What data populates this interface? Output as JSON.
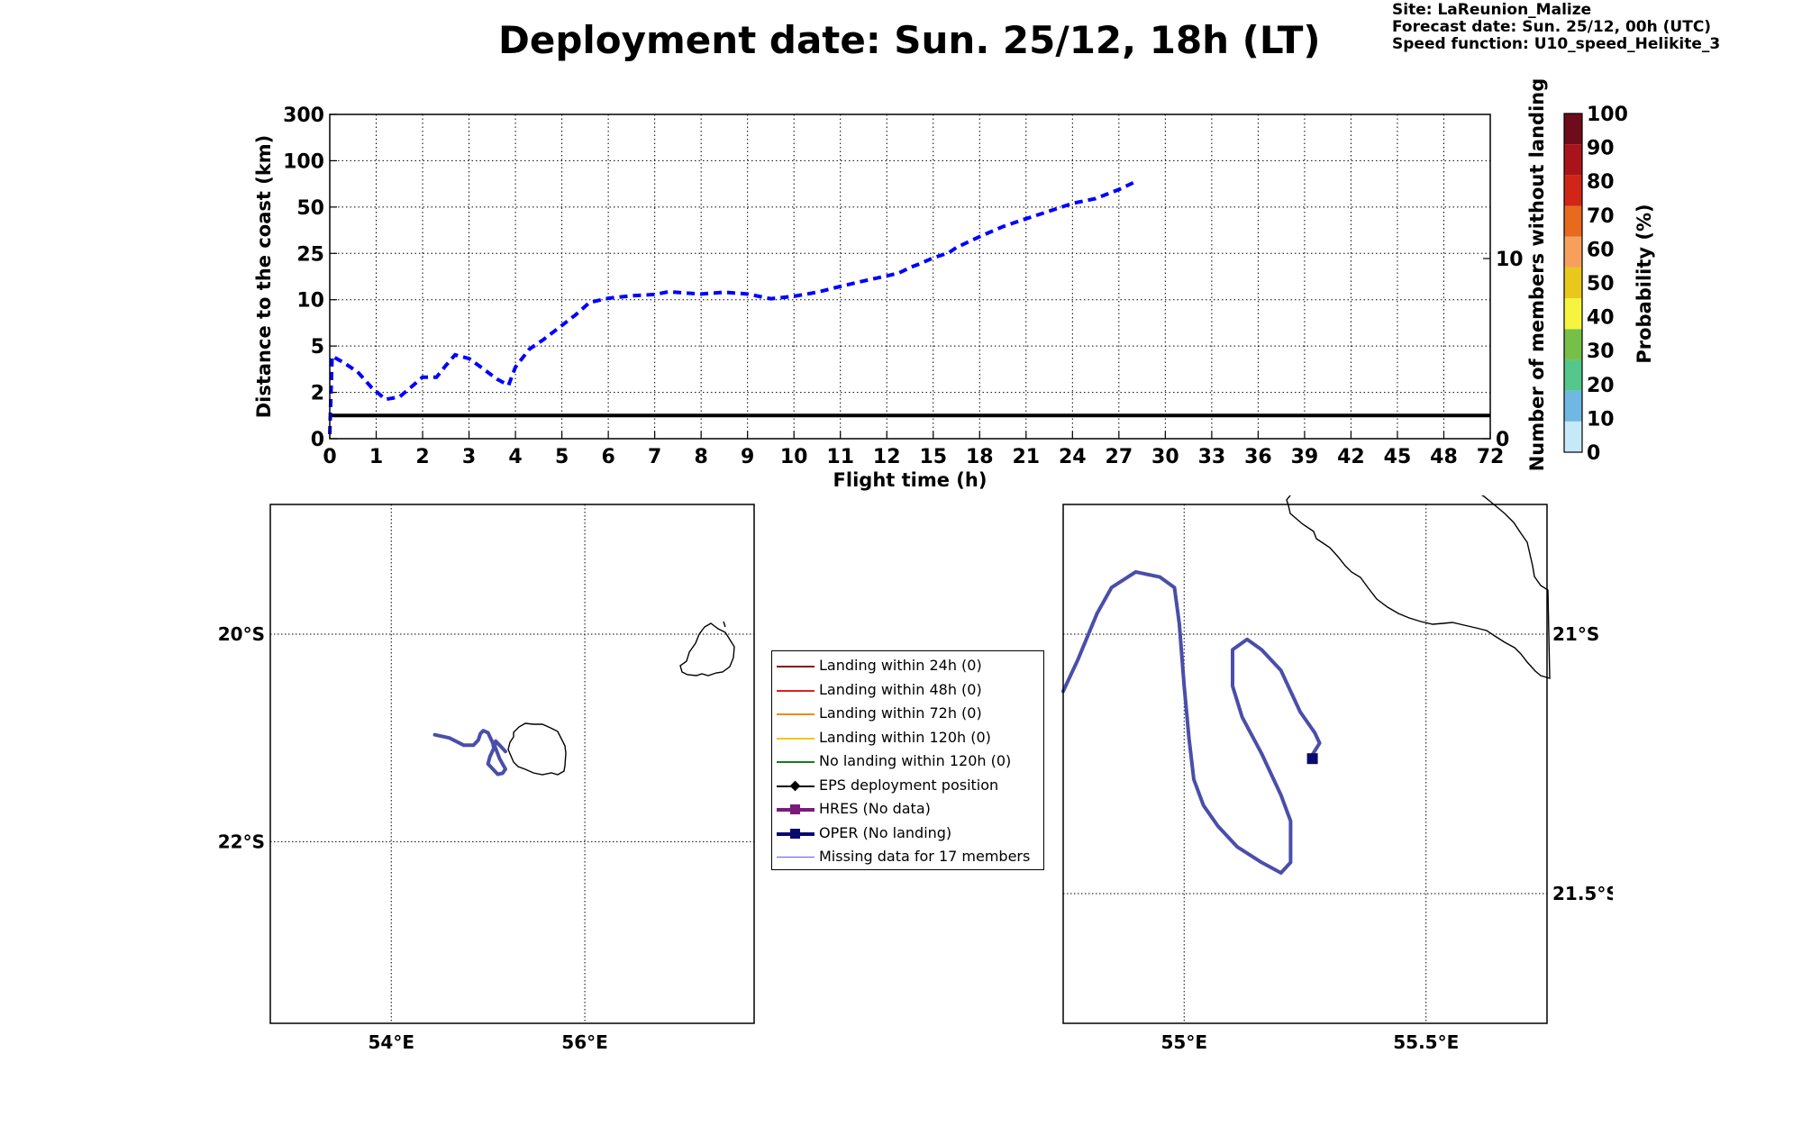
{
  "header": {
    "title": "Deployment date: Sun. 25/12, 18h (LT)",
    "site": "Site: LaReunion_Malize",
    "forecast_date": "Forecast date: Sun. 25/12, 00h (UTC)",
    "speed_function": "Speed function: U10_speed_Helikite_3"
  },
  "colors": {
    "trajectory": "#4a4eaa",
    "distance_line": "#0000ff",
    "oper_marker": "#0a0a6e"
  },
  "chart_data": [
    {
      "type": "line",
      "xlabel": "Flight time (h)",
      "ylabel": "Distance to the coast (km)",
      "y2label": "Number of members without landing",
      "x_ticks": [
        "0",
        "1",
        "2",
        "3",
        "4",
        "5",
        "6",
        "7",
        "8",
        "9",
        "10",
        "11",
        "12",
        "15",
        "18",
        "21",
        "24",
        "27",
        "30",
        "33",
        "36",
        "39",
        "42",
        "45",
        "48",
        "72"
      ],
      "y_ticks": [
        "0",
        "2",
        "5",
        "10",
        "25",
        "50",
        "100",
        "300"
      ],
      "y2_ticks": [
        "0",
        "10"
      ],
      "y2_range": [
        0,
        18
      ],
      "horizontal_line_y": 1,
      "grid": true,
      "series": [
        {
          "style": "dashed",
          "x": [
            0,
            0.05,
            0.3,
            0.6,
            0.9,
            1.2,
            1.5,
            1.8,
            2.0,
            2.3,
            2.5,
            2.7,
            3.0,
            3.3,
            3.6,
            3.85,
            4.0,
            4.3,
            4.6,
            5.0,
            5.3,
            5.6,
            6.0,
            6.5,
            7.0,
            7.3,
            7.7,
            8.0,
            8.5,
            9.0,
            9.5,
            10.0,
            10.5,
            11.0,
            11.5,
            12.0,
            12.8,
            13.5,
            14.2,
            15.0,
            16.0,
            16.5,
            18.0,
            19.5,
            21.0,
            22.5,
            24.0,
            25.5,
            27.0,
            28.0
          ],
          "y": [
            0.2,
            4.1,
            3.6,
            3.0,
            2.2,
            1.7,
            1.8,
            2.3,
            2.7,
            2.7,
            3.4,
            4.2,
            3.9,
            3.2,
            2.6,
            2.3,
            3.3,
            4.7,
            5.5,
            6.8,
            8.0,
            9.6,
            10.3,
            10.8,
            11.1,
            11.7,
            11.4,
            11.2,
            11.6,
            11.2,
            10.2,
            10.7,
            11.6,
            13.0,
            14.5,
            16.0,
            17.0,
            18.9,
            20.5,
            22.9,
            25.2,
            27.3,
            32.1,
            37.3,
            42.0,
            47.0,
            52.8,
            56.8,
            65.0,
            72.5
          ]
        }
      ]
    },
    {
      "type": "scatter",
      "xlim": [
        52.75,
        57.75
      ],
      "ylim": [
        -23.75,
        -18.75
      ],
      "x_ticks": [
        "54°E",
        "56°E"
      ],
      "y_ticks": [
        "20°S",
        "22°S"
      ],
      "series": [
        {
          "name": "OPER trajectory",
          "x": [
            54.45,
            54.6,
            54.75,
            54.85,
            54.9,
            54.92,
            54.95,
            55.0,
            55.05,
            55.06,
            55.02,
            55.0,
            55.05,
            55.1,
            55.15,
            55.18,
            55.12,
            55.07,
            55.08,
            55.12,
            55.18
          ],
          "y": [
            -20.97,
            -21.0,
            -21.07,
            -21.07,
            -21.02,
            -20.96,
            -20.93,
            -20.95,
            -21.05,
            -21.1,
            -21.18,
            -21.25,
            -21.3,
            -21.35,
            -21.34,
            -21.3,
            -21.2,
            -21.08,
            -21.03,
            -21.07,
            -21.13
          ]
        }
      ]
    },
    {
      "type": "scatter",
      "xlim": [
        54.75,
        55.75
      ],
      "ylim": [
        -21.75,
        -20.75
      ],
      "x_ticks": [
        "55°E",
        "55.5°E"
      ],
      "y_ticks": [
        "21°S",
        "21.5°S"
      ],
      "series": [
        {
          "name": "OPER trajectory",
          "x": [
            54.75,
            54.78,
            54.82,
            54.85,
            54.9,
            54.95,
            54.98,
            54.99,
            55.0,
            55.01,
            55.02,
            55.04,
            55.07,
            55.11,
            55.16,
            55.2,
            55.22,
            55.22,
            55.2,
            55.16,
            55.12,
            55.1,
            55.1,
            55.13,
            55.16,
            55.2,
            55.24,
            55.27,
            55.28,
            55.26
          ],
          "y": [
            -21.11,
            -21.05,
            -20.96,
            -20.91,
            -20.88,
            -20.89,
            -20.91,
            -20.98,
            -21.1,
            -21.2,
            -21.28,
            -21.33,
            -21.37,
            -21.41,
            -21.44,
            -21.46,
            -21.44,
            -21.36,
            -21.31,
            -21.23,
            -21.16,
            -21.1,
            -21.03,
            -21.01,
            -21.03,
            -21.07,
            -21.15,
            -21.19,
            -21.21,
            -21.24
          ]
        },
        {
          "name": "OPER (No landing)",
          "x": [
            55.265
          ],
          "y": [
            -21.24
          ]
        }
      ]
    }
  ],
  "colorbar": {
    "label": "Probability (%)",
    "ticks": [
      "0",
      "10",
      "20",
      "30",
      "40",
      "50",
      "60",
      "70",
      "80",
      "90",
      "100"
    ],
    "colors": [
      "#c6e9f8",
      "#6fb8e3",
      "#56c78c",
      "#76c047",
      "#f7f43f",
      "#e8c81a",
      "#f6a05c",
      "#e86a1f",
      "#cf2617",
      "#a9141b",
      "#6e0c1c"
    ]
  },
  "legend": {
    "items": [
      {
        "label": "Landing within 24h (0)",
        "color": "#8b0f1a",
        "width": 2,
        "marker": ""
      },
      {
        "label": "Landing within 48h (0)",
        "color": "#e02020",
        "width": 2,
        "marker": ""
      },
      {
        "label": "Landing within 72h (0)",
        "color": "#f08a1a",
        "width": 2,
        "marker": ""
      },
      {
        "label": "Landing within 120h (0)",
        "color": "#f5c51a",
        "width": 2,
        "marker": ""
      },
      {
        "label": "No landing within 120h (0)",
        "color": "#1a7a1a",
        "width": 2,
        "marker": ""
      },
      {
        "label": "EPS deployment position",
        "color": "#000000",
        "width": 2,
        "marker": "diamond"
      },
      {
        "label": "HRES (No data)",
        "color": "#7a1a7a",
        "width": 4,
        "marker": "square"
      },
      {
        "label": "OPER (No landing)",
        "color": "#0a0a6e",
        "width": 4,
        "marker": "square"
      },
      {
        "label": "Missing data for 17 members",
        "color": "#5a5aee",
        "width": 1.5,
        "marker": ""
      }
    ]
  }
}
